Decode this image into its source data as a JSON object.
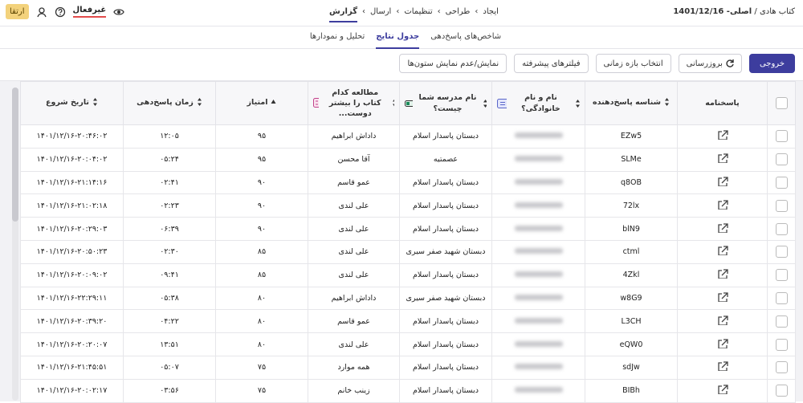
{
  "topbar": {
    "breadcrumb": [
      "کتاب هادی",
      "اصلی- 1401/12/16"
    ],
    "nav": [
      "ایجاد",
      "طراحی",
      "تنظیمات",
      "ارسال",
      "گزارش"
    ],
    "status": "غیرفعال",
    "upgrade": "ارتقا"
  },
  "tabs": [
    "شاخص‌های پاسخ‌دهی",
    "جدول نتایج",
    "تحلیل و نمودارها"
  ],
  "toolbar": {
    "export": "خروجی",
    "refresh": "بروزرسانی",
    "buttons": [
      "انتخاب بازه زمانی",
      "فیلترهای پیشرفته",
      "نمایش/عدم نمایش ستون‌ها"
    ]
  },
  "table": {
    "columns": {
      "sheet": "پاسخنامه",
      "id": "شناسه پاسخ‌دهنده",
      "name": "نام و نام خانوادگی؟",
      "school": "نام مدرسه شما چیست؟",
      "book": "مطالعه کدام کتاب را بیشتر دوست...",
      "score": "امتیاز",
      "time": "زمان پاسخ‌دهی",
      "start": "تاریخ شروع"
    },
    "rows": [
      {
        "id": "EZw5",
        "school": "دبستان پاسدار اسلام",
        "book": "داداش ابراهیم",
        "score": "۹۵",
        "time": "۱۲:۰۵",
        "start": "۱۴۰۱/۱۲/۱۶-۲۰:۴۶:۰۲"
      },
      {
        "id": "SLMe",
        "school": "عصمتیه",
        "book": "آقا محسن",
        "score": "۹۵",
        "time": "۰۵:۲۴",
        "start": "۱۴۰۱/۱۲/۱۶-۲۰:۰۴:۰۲"
      },
      {
        "id": "q8OB",
        "school": "دبستان پاسدار اسلام",
        "book": "عمو قاسم",
        "score": "۹۰",
        "time": "۰۲:۴۱",
        "start": "۱۴۰۱/۱۲/۱۶-۲۱:۱۴:۱۶"
      },
      {
        "id": "72lx",
        "school": "دبستان پاسدار اسلام",
        "book": "علی لندی",
        "score": "۹۰",
        "time": "۰۲:۲۳",
        "start": "۱۴۰۱/۱۲/۱۶-۲۱:۰۲:۱۸"
      },
      {
        "id": "blN9",
        "school": "دبستان پاسدار اسلام",
        "book": "علی لندی",
        "score": "۹۰",
        "time": "۰۶:۳۹",
        "start": "۱۴۰۱/۱۲/۱۶-۲۰:۲۹:۰۳"
      },
      {
        "id": "ctml",
        "school": "دبستان شهید صفر سیری",
        "book": "علی لندی",
        "score": "۸۵",
        "time": "۰۲:۳۰",
        "start": "۱۴۰۱/۱۲/۱۶-۲۰:۵۰:۲۳"
      },
      {
        "id": "4Zkl",
        "school": "دبستان پاسدار اسلام",
        "book": "علی لندی",
        "score": "۸۵",
        "time": "۰۹:۴۱",
        "start": "۱۴۰۱/۱۲/۱۶-۲۰:۰۹:۰۲"
      },
      {
        "id": "w8G9",
        "school": "دبستان شهید صفر سیری",
        "book": "داداش ابراهیم",
        "score": "۸۰",
        "time": "۰۵:۳۸",
        "start": "۱۴۰۱/۱۲/۱۶-۲۲:۲۹:۱۱"
      },
      {
        "id": "L3CH",
        "school": "دبستان پاسدار اسلام",
        "book": "عمو قاسم",
        "score": "۸۰",
        "time": "۰۴:۲۲",
        "start": "۱۴۰۱/۱۲/۱۶-۲۰:۳۹:۲۰"
      },
      {
        "id": "eQW0",
        "school": "دبستان پاسدار اسلام",
        "book": "علی لندی",
        "score": "۸۰",
        "time": "۱۳:۵۱",
        "start": "۱۴۰۱/۱۲/۱۶-۲۰:۲۰:۰۷"
      },
      {
        "id": "sdJw",
        "school": "دبستان پاسدار اسلام",
        "book": "همه موارد",
        "score": "۷۵",
        "time": "۰۵:۰۷",
        "start": "۱۴۰۱/۱۲/۱۶-۲۱:۴۵:۵۱"
      },
      {
        "id": "BIBh",
        "school": "دبستان پاسدار اسلام",
        "book": "زینب خانم",
        "score": "۷۵",
        "time": "۰۳:۵۶",
        "start": "۱۴۰۱/۱۲/۱۶-۲۰:۰۲:۱۷"
      }
    ]
  }
}
